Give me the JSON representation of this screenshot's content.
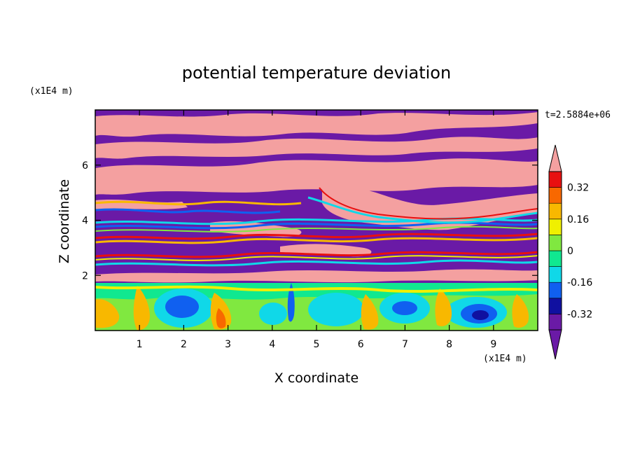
{
  "chart_data": {
    "type": "heatmap",
    "title": "potential temperature deviation",
    "xlabel": "X coordinate",
    "ylabel": "Z coordinate",
    "x_unit": "(x1E4 m)",
    "y_unit": "(x1E4 m)",
    "time_label": "t=2.5884e+06",
    "xlim": [
      0,
      10
    ],
    "ylim": [
      0,
      8
    ],
    "x_ticks": [
      1,
      2,
      3,
      4,
      5,
      6,
      7,
      8,
      9
    ],
    "y_ticks": [
      2,
      4,
      6
    ],
    "colorbar": {
      "levels": [
        -0.4,
        -0.32,
        -0.24,
        -0.16,
        -0.08,
        0,
        0.08,
        0.16,
        0.24,
        0.32,
        0.4
      ],
      "colors": [
        "#6a1aa6",
        "#1010a0",
        "#1060f0",
        "#10d8e8",
        "#10e890",
        "#80e840",
        "#f0f000",
        "#f8b800",
        "#f86800",
        "#e81010",
        "#f4a0a0"
      ],
      "labels": [
        "-0.32",
        "-0.16",
        "0",
        "0.16",
        "0.32"
      ],
      "label_values": [
        -0.32,
        -0.16,
        0,
        0.16,
        0.32
      ],
      "extend": "both"
    }
  }
}
